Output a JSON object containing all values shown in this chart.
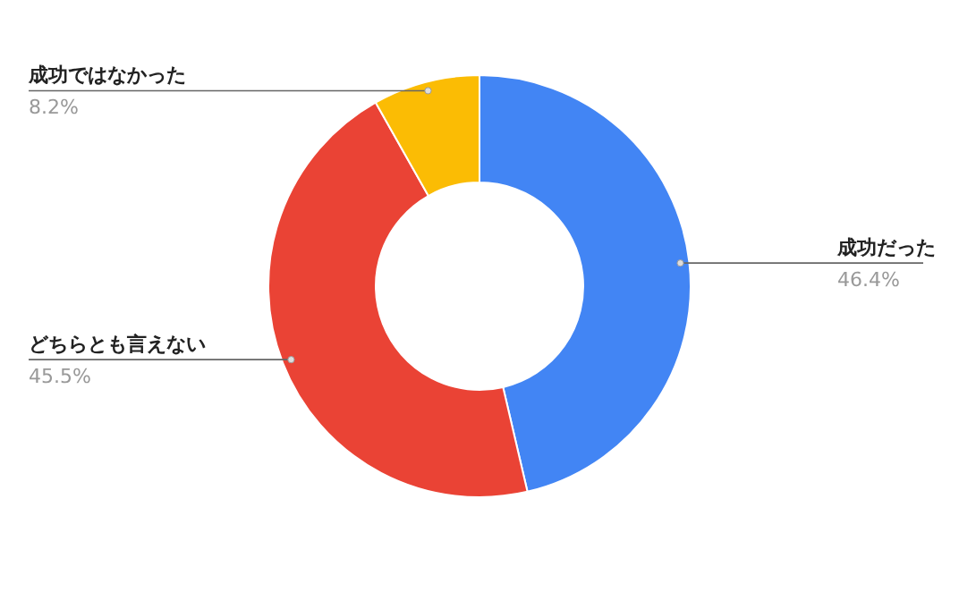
{
  "chart_data": {
    "type": "donut",
    "categories": [
      "成功だった",
      "どちらとも言えない",
      "成功ではなかった"
    ],
    "values": [
      46.4,
      45.5,
      8.2
    ],
    "colors": [
      "#4285f4",
      "#ea4335",
      "#fbbc04"
    ],
    "value_labels": [
      "46.4%",
      "45.5%",
      "8.2%"
    ]
  }
}
